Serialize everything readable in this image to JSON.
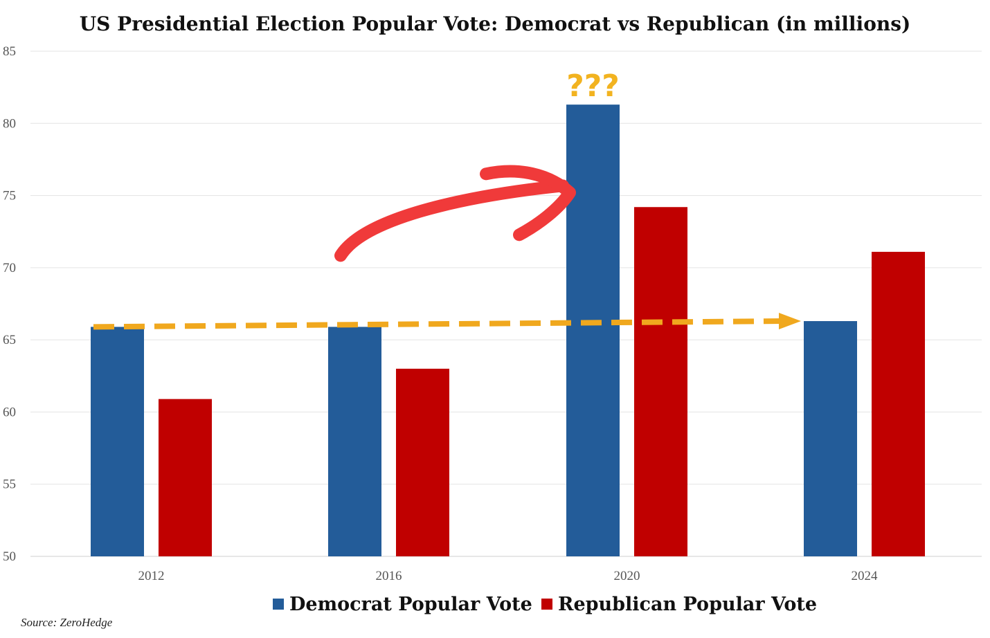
{
  "chart_data": {
    "type": "bar",
    "title": "US Presidential Election Popular Vote: Democrat vs  Republican (in millions)",
    "categories": [
      "2012",
      "2016",
      "2020",
      "2024"
    ],
    "series": [
      {
        "name": "Democrat Popular Vote",
        "values": [
          65.9,
          65.9,
          81.3,
          66.3
        ],
        "color": "#235c99"
      },
      {
        "name": "Republican Popular Vote",
        "values": [
          60.9,
          63.0,
          74.2,
          71.1
        ],
        "color": "#c00000"
      }
    ],
    "ylim": [
      50,
      85
    ],
    "yticks": [
      "50",
      "55",
      "60",
      "65",
      "70",
      "75",
      "80",
      "85"
    ],
    "xlabel": "",
    "ylabel": "",
    "grid": true,
    "legend": "bottom",
    "annotations": {
      "question_marks": "???",
      "question_marks_color": "#f2b320",
      "highlight_arrow_color": "#f03a3a",
      "trend_line_color": "#f0a81e",
      "trend_line_from": {
        "x": "2012",
        "y": 65.9
      },
      "trend_line_to": {
        "x": "2024",
        "y": 66.3
      }
    },
    "source": "Source: ZeroHedge"
  }
}
